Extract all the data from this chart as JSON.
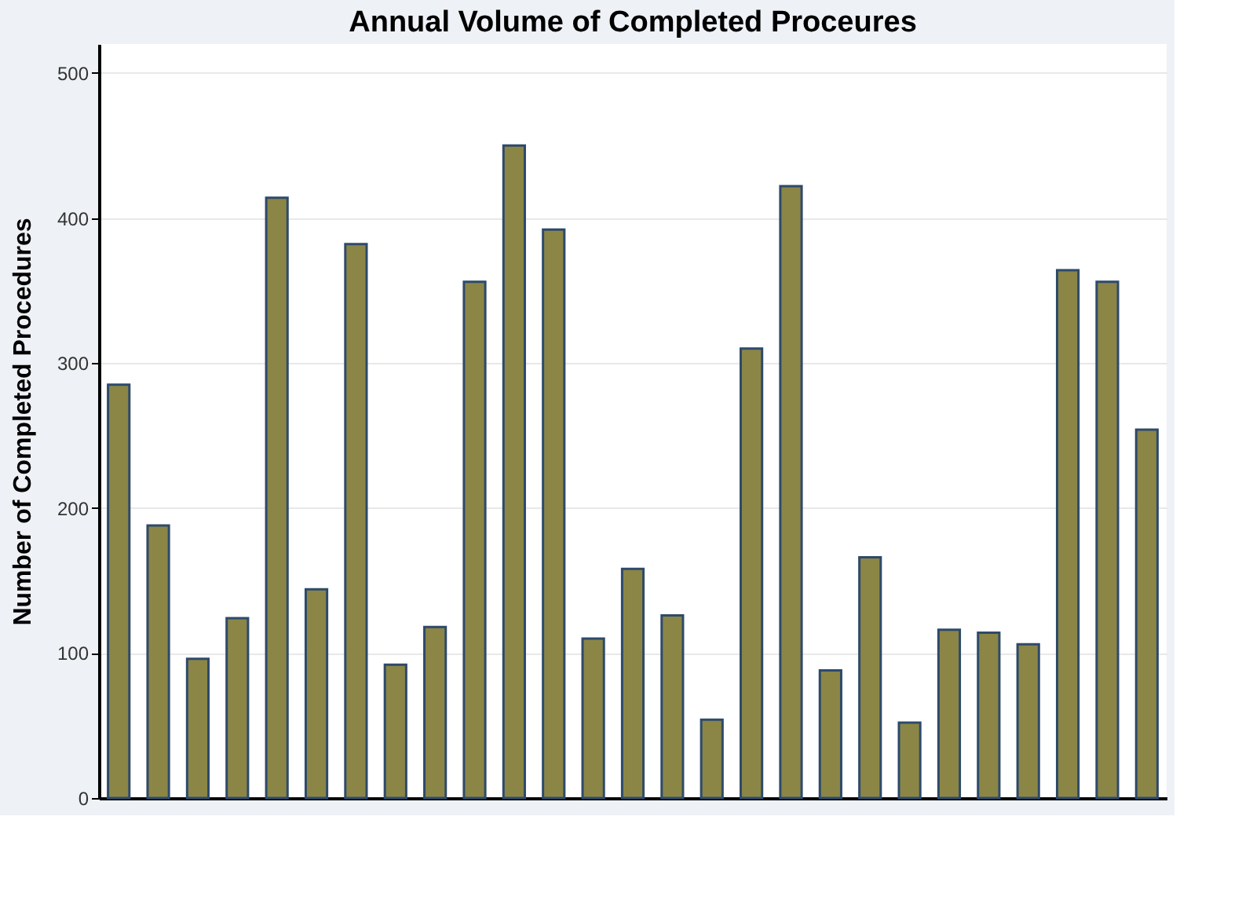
{
  "chart_data": {
    "type": "bar",
    "title": "Annual Volume of Completed Proceures",
    "ylabel": "Number of Completed Procedures",
    "categories": [
      null,
      null,
      null,
      null,
      null,
      null,
      null,
      null,
      null,
      null,
      null,
      null,
      null,
      null,
      null,
      null,
      null,
      null,
      null,
      null,
      null,
      null,
      null,
      null,
      null,
      null,
      null
    ],
    "values": [
      285,
      188,
      96,
      124,
      414,
      144,
      382,
      92,
      118,
      356,
      450,
      392,
      110,
      158,
      126,
      54,
      310,
      422,
      88,
      166,
      52,
      116,
      114,
      106,
      364,
      356,
      254
    ],
    "color": "#8b8646",
    "ylim": [
      0,
      520
    ],
    "yticks": [
      0,
      100,
      200,
      300,
      400,
      500
    ],
    "grid": "y",
    "tick_labels": "y"
  }
}
